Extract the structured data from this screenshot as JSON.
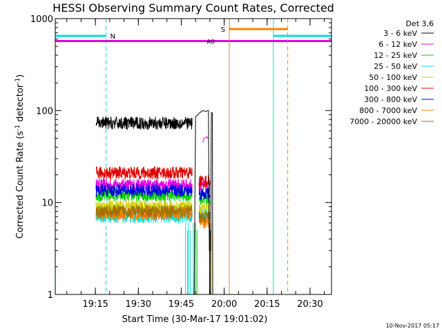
{
  "chart_data": {
    "type": "line",
    "title": "HESSI Observing Summary Count Rates, Corrected",
    "xlabel": "Start Time (30-Mar-17 19:01:02)",
    "ylabel": "Corrected Count Rate (s",
    "ylabel_sup": "-1",
    "ylabel_tail": " detector",
    "ylabel_tail_sup": "-1",
    "ylabel_close": ")",
    "y_scale": "log",
    "ylim": [
      1,
      1000
    ],
    "xlim_minutes": [
      -0.03,
      96.5
    ],
    "x_ticks": [
      {
        "t": 14,
        "label": "19:15"
      },
      {
        "t": 29,
        "label": "19:30"
      },
      {
        "t": 44,
        "label": "19:45"
      },
      {
        "t": 59,
        "label": "20:00"
      },
      {
        "t": 74,
        "label": "20:15"
      },
      {
        "t": 89,
        "label": "20:30"
      }
    ],
    "y_ticks": [
      {
        "v": 1,
        "label": "1"
      },
      {
        "v": 10,
        "label": "10"
      },
      {
        "v": 100,
        "label": "100"
      },
      {
        "v": 1000,
        "label": "1000"
      }
    ],
    "legend": {
      "placement": "right",
      "header": "Det 3,6",
      "entries": [
        {
          "label": "3 - 6 keV",
          "color": "#000000"
        },
        {
          "label": "6 - 12 keV",
          "color": "#e000e0"
        },
        {
          "label": "12 - 25 keV",
          "color": "#00d000"
        },
        {
          "label": "25 - 50 keV",
          "color": "#00e0e0"
        },
        {
          "label": "50 - 100 keV",
          "color": "#d0d000"
        },
        {
          "label": "100 - 300 keV",
          "color": "#e00000"
        },
        {
          "label": "300 - 800 keV",
          "color": "#0000e0"
        },
        {
          "label": "800 - 7000 keV",
          "color": "#ff8000"
        },
        {
          "label": "7000 - 20000 keV",
          "color": "#a07000"
        }
      ]
    },
    "series": [
      {
        "color": "#e000e0",
        "segments": [
          [
            14.2,
            47.8,
            15.5
          ],
          [
            50.2,
            54.0,
            15.0
          ]
        ]
      },
      {
        "color": "#00d000",
        "segments": [
          [
            14.2,
            47.8,
            12.0
          ],
          [
            50.2,
            54.0,
            11.0
          ]
        ]
      },
      {
        "color": "#00e0e0",
        "segments": [
          [
            14.2,
            47.8,
            7.0
          ],
          [
            50.2,
            54.0,
            7.5
          ]
        ]
      },
      {
        "color": "#d0d000",
        "segments": [
          [
            14.2,
            47.8,
            9.0
          ],
          [
            50.2,
            54.0,
            8.5
          ]
        ]
      },
      {
        "color": "#e00000",
        "segments": [
          [
            14.2,
            47.8,
            21.0
          ],
          [
            50.2,
            54.0,
            17.0
          ]
        ]
      },
      {
        "color": "#0000e0",
        "segments": [
          [
            14.2,
            47.8,
            13.5
          ],
          [
            50.2,
            54.0,
            12.5
          ]
        ]
      },
      {
        "color": "#ff8000",
        "segments": [
          [
            14.2,
            47.8,
            7.5
          ],
          [
            50.2,
            54.0,
            6.0
          ]
        ]
      },
      {
        "color": "#a07000",
        "segments": [
          [
            14.2,
            47.8,
            8.0
          ],
          [
            50.2,
            54.0,
            7.0
          ]
        ]
      },
      {
        "color": "#000000",
        "segments": [
          [
            14.2,
            47.8,
            73.0
          ]
        ]
      }
    ],
    "black_post_gap": [
      [
        48.5,
        1.0
      ],
      [
        49.0,
        85.0
      ],
      [
        50.5,
        95.0
      ],
      [
        51.5,
        100.0
      ],
      [
        52.5,
        98.0
      ],
      [
        53.5,
        100.0
      ],
      [
        53.8,
        3.0
      ],
      [
        54.3,
        3.0
      ],
      [
        54.5,
        95.0
      ],
      [
        54.9,
        94.0
      ],
      [
        55.0,
        1.0
      ]
    ],
    "magenta_post_gap": [
      [
        51.5,
        45.0
      ],
      [
        52.0,
        50.0
      ],
      [
        53.0,
        52.0
      ],
      [
        53.6,
        48.0
      ]
    ],
    "annotations": {
      "night_label": "N",
      "saa_label": "S",
      "atten_label": "A0"
    },
    "night_intervals": [
      [
        0,
        17.7
      ],
      [
        76.2,
        96.5
      ]
    ],
    "saa_interval": [
      60.8,
      81.2
    ],
    "atten_level": 570,
    "night_level": 650,
    "saa_level": 770
  },
  "footer": {
    "timestamp": "10-Nov-2017 05:17"
  }
}
